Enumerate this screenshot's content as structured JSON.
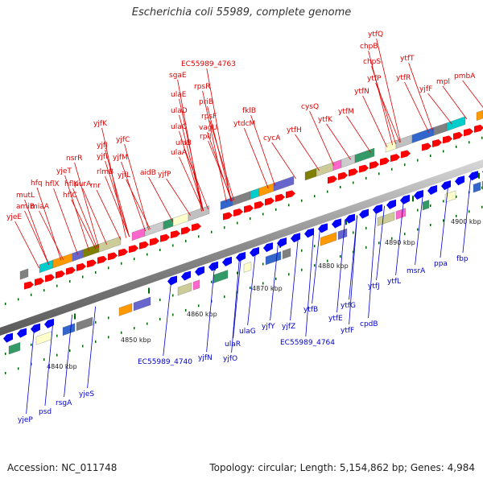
{
  "title": "Escherichia coli 55989, complete genome",
  "footer": {
    "accession": "Accession: NC_011748",
    "summary": "Topology: circular; Length: 5,154,862 bp; Genes: 4,984"
  },
  "colors": {
    "forward_label": "#dd0000",
    "reverse_label": "#0000cc",
    "forward_arrow": "#ff0000",
    "reverse_arrow": "#0000ff",
    "backbone": "#9a9a9a",
    "tick": "#006600"
  },
  "kbp_ticks": [
    "4840 kbp",
    "4850 kbp",
    "4860 kbp",
    "4870 kbp",
    "4880 kbp",
    "4890 kbp",
    "4900 kbp"
  ],
  "forward_genes": [
    "yjeE",
    "amiB",
    "mutL",
    "miaA",
    "hfq",
    "hflX",
    "hflK",
    "yjeT",
    "hflC",
    "purA",
    "nsrR",
    "rnr",
    "rlmB",
    "yjfI",
    "yjfJ",
    "yjfK",
    "yjfL",
    "yjfM",
    "yjfC",
    "aidB",
    "yjfP",
    "ulaA",
    "ulaB",
    "ulaC",
    "ulaD",
    "ulaE",
    "sgaE",
    "rpsF",
    "priB",
    "rpsR",
    "rplI",
    "vagU",
    "EC55989_4763",
    "ytdcM",
    "fklB",
    "cycA",
    "ytfH",
    "cysQ",
    "ytfK",
    "ytfM",
    "ytfN",
    "ytfP",
    "chpS",
    "chpB",
    "ytfQ",
    "ytfR",
    "ytfT",
    "yjfF",
    "mpl",
    "pmbA"
  ],
  "reverse_genes": [
    "yjeP",
    "psd",
    "rsgA",
    "yjeS",
    "EC55989_4740",
    "yjfN",
    "yjfO",
    "ulaR",
    "ulaG",
    "yjfY",
    "yjfZ",
    "EC55989_4764",
    "ytfB",
    "ytfE",
    "ytfF",
    "ytfG",
    "cpdB",
    "ytfJ",
    "ytfL",
    "msrA",
    "ppa",
    "fbp"
  ]
}
